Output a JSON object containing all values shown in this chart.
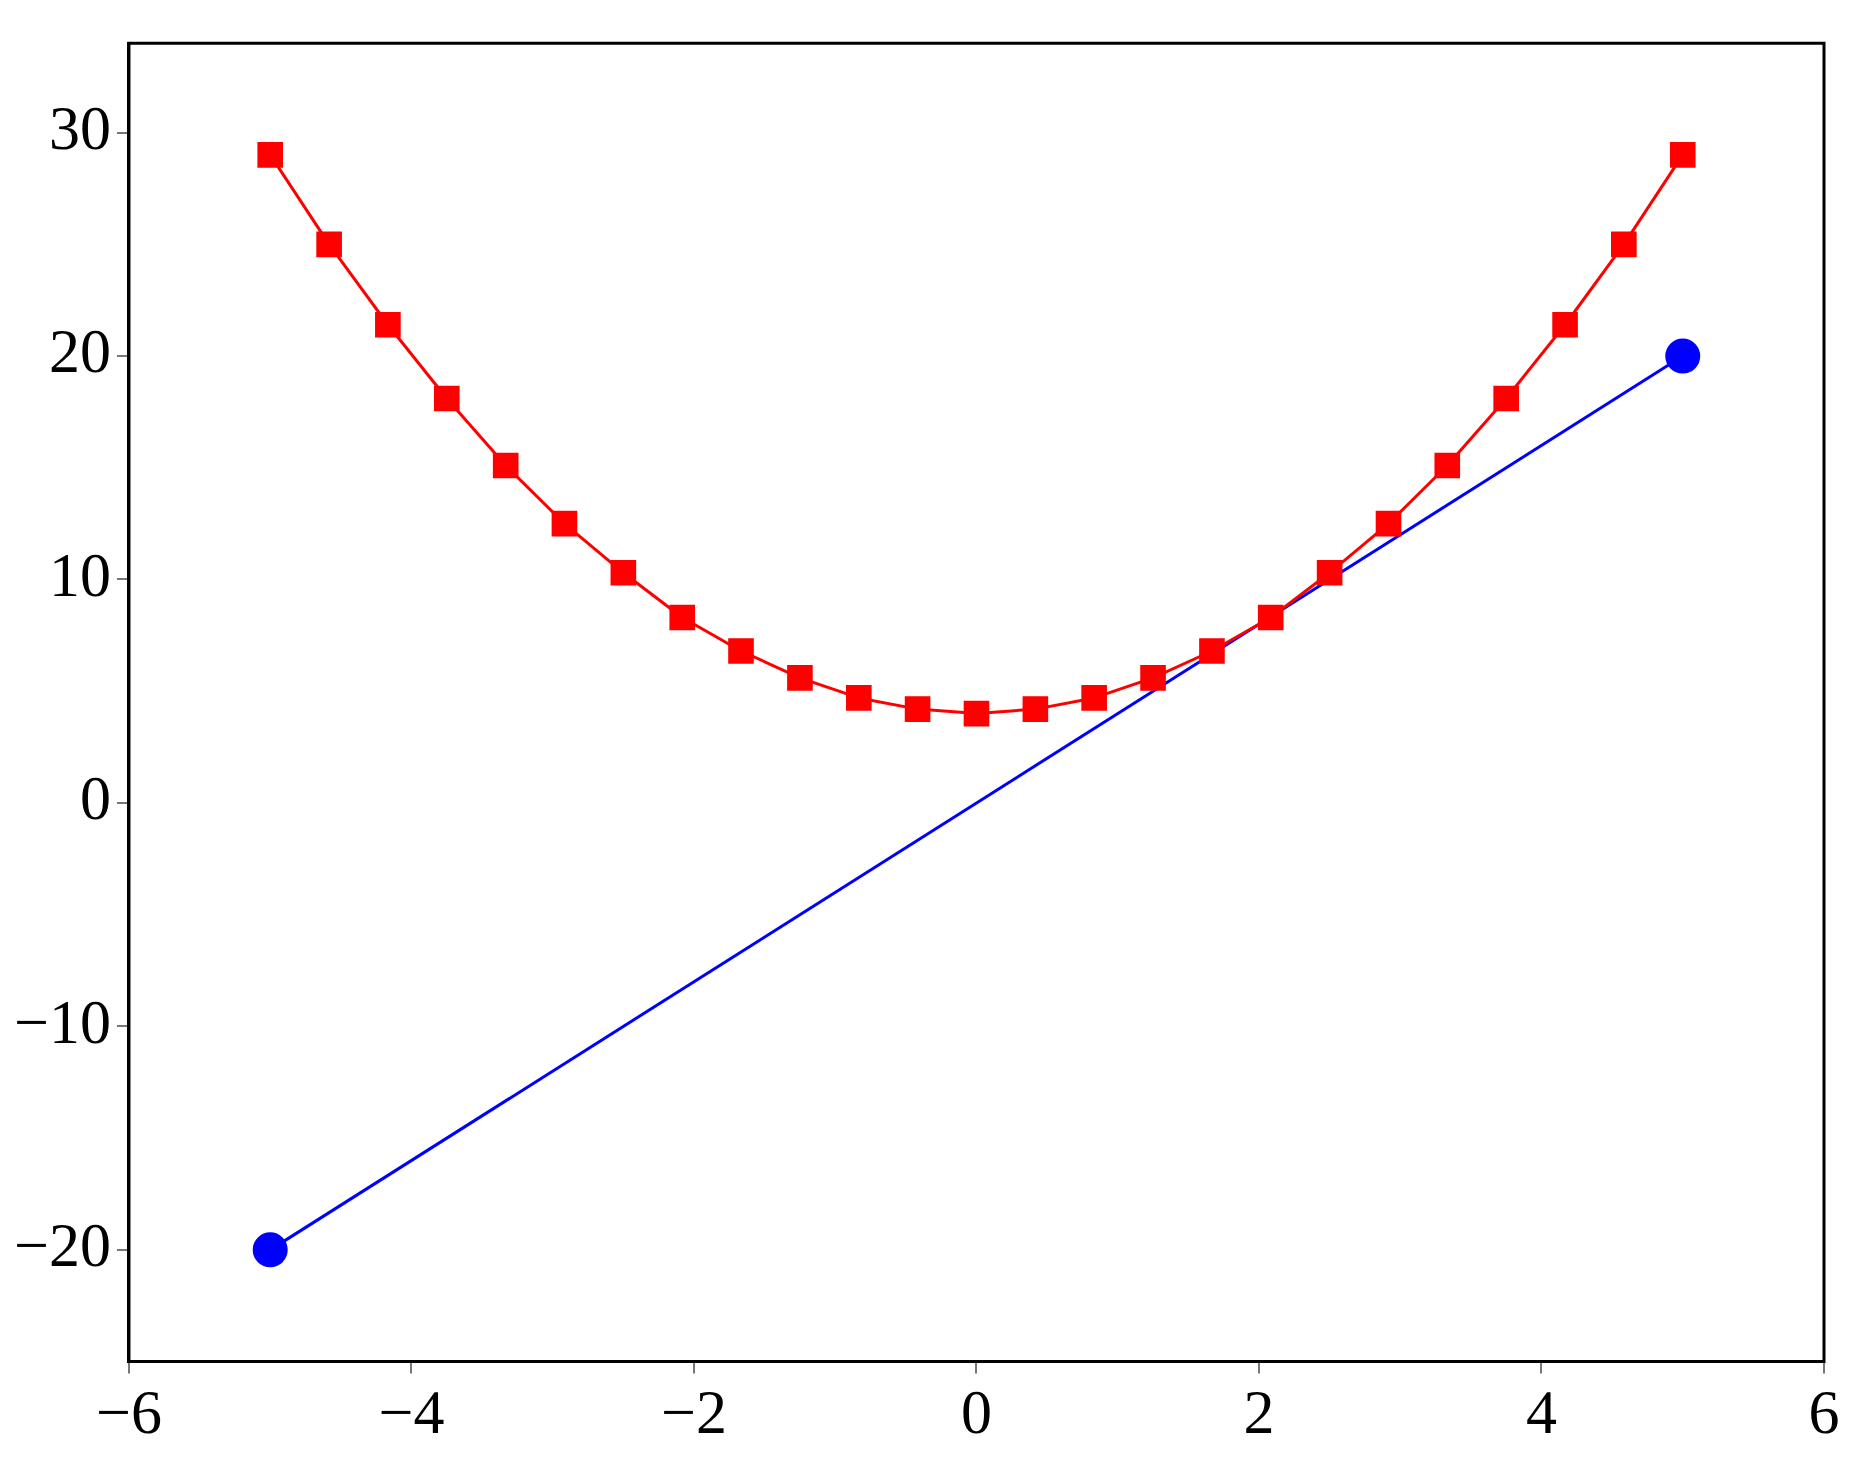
{
  "chart_data": {
    "type": "line",
    "xlim": [
      -6,
      6
    ],
    "xticks": [
      -6,
      -4,
      -2,
      0,
      2,
      4,
      6
    ],
    "ylim": [
      -25,
      34
    ],
    "yticks": [
      -20,
      -10,
      0,
      10,
      20,
      30
    ],
    "grid": false,
    "legend": false,
    "line_style": "solid",
    "series": [
      {
        "color": "#ff0000",
        "marker": "square",
        "x": [
          -5,
          -4.583,
          -4.167,
          -3.75,
          -3.333,
          -2.917,
          -2.5,
          -2.083,
          -1.667,
          -1.25,
          -0.833,
          -0.417,
          0,
          0.417,
          0.833,
          1.25,
          1.667,
          2.083,
          2.5,
          2.917,
          3.333,
          3.75,
          4.167,
          4.583,
          5
        ],
        "values": [
          29,
          25,
          21.4,
          18.1,
          15.1,
          12.5,
          10.3,
          8.3,
          6.8,
          5.6,
          4.7,
          4.2,
          4,
          4.2,
          4.7,
          5.6,
          6.8,
          8.3,
          10.3,
          12.5,
          15.1,
          18.1,
          21.4,
          25,
          29
        ]
      },
      {
        "color": "#0000ff",
        "marker": "circle",
        "x": [
          -5,
          5
        ],
        "values": [
          -20,
          20
        ]
      }
    ]
  }
}
